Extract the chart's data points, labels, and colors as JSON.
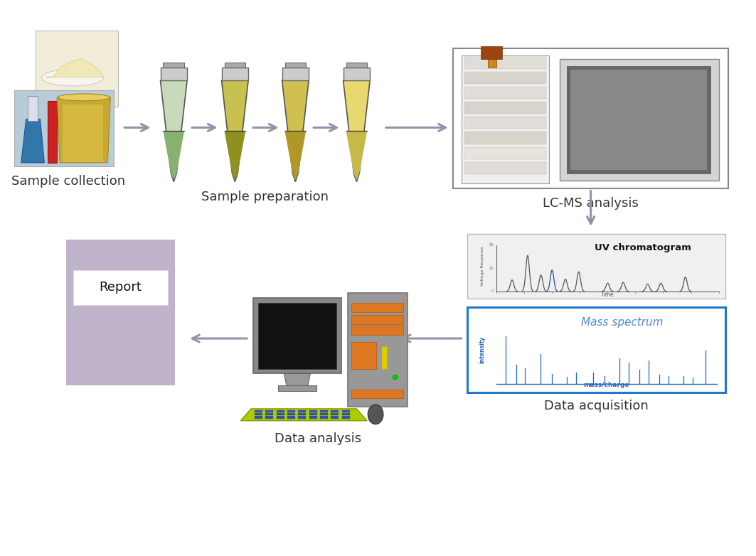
{
  "bg_color": "#ffffff",
  "arrow_color": "#9b8ea8",
  "label_fontsize": 13,
  "label_color": "#333333",
  "labels": {
    "sample_collection": "Sample collection",
    "sample_preparation": "Sample preparation",
    "lcms": "LC-MS analysis",
    "data_acquisition": "Data acquisition",
    "data_analysis": "Data analysis"
  },
  "uv_title": "UV chromatogram",
  "uv_xlabel": "Time",
  "uv_ylabel": "Voltage Response",
  "ms_title": "Mass spectrum",
  "ms_xlabel": "mass/charge",
  "ms_ylabel": "intensity",
  "ms_color": "#2266bb",
  "ms_border_color": "#2277cc",
  "report_color": "#c0b4cc",
  "report_label": "Report",
  "report_label_color": "#111111",
  "tube_border": "#555555"
}
